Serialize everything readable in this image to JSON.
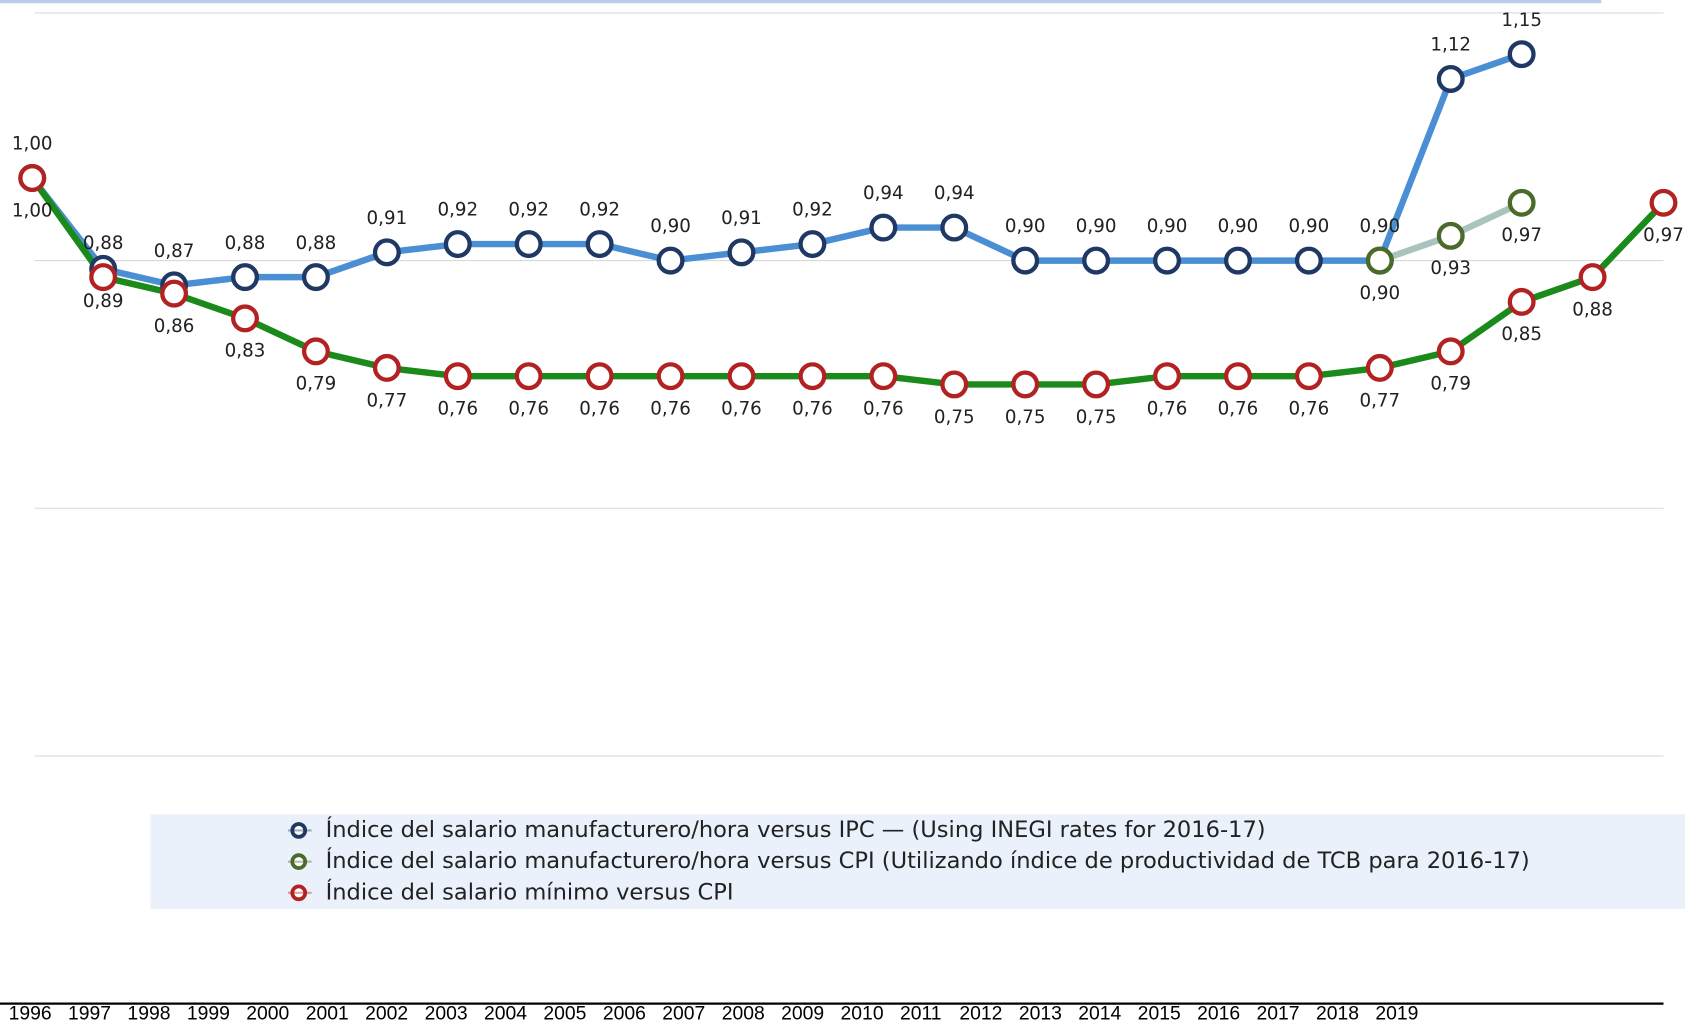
{
  "chart_data": {
    "type": "line",
    "categories": [
      "1996",
      "1997",
      "1998",
      "1999",
      "2000",
      "2001",
      "2002",
      "2003",
      "2004",
      "2005",
      "2006",
      "2007",
      "2008",
      "2009",
      "2010",
      "2011",
      "2012",
      "2013",
      "2014",
      "2015",
      "2016",
      "2017",
      "2018",
      "2019"
    ],
    "ylim": [
      0,
      1.2
    ],
    "yticks": [
      0.3,
      0.6,
      0.9,
      1.2
    ],
    "grid": true,
    "series": [
      {
        "name": "Índice del salario manufacturero/hora versus IPC — (Using INEGI rates for 2016-17)",
        "color": "#4a8fd4",
        "marker_color": "#1f3864",
        "values": [
          1.0,
          0.89,
          0.87,
          0.88,
          0.88,
          0.91,
          0.92,
          0.92,
          0.92,
          0.9,
          0.91,
          0.92,
          0.94,
          0.94,
          0.9,
          0.9,
          0.9,
          0.9,
          0.9,
          0.9,
          1.12,
          1.15,
          null,
          null
        ],
        "value_labels": [
          "1,00",
          "0,89",
          "0,87",
          "0,88",
          "0,88",
          "0,91",
          "0,92",
          "0,92",
          "0,92",
          "0,90",
          "0,91",
          "0,92",
          "0,94",
          "0,94",
          "0,90",
          "0,90",
          "0,90",
          "0,90",
          "0,90",
          "0,90",
          "1,12",
          "1,15",
          null,
          null
        ]
      },
      {
        "name": "Índice del salario manufacturero/hora versus CPI (Utilizando índice de productividad de TCB para 2016-17)",
        "color": "#a9c4bc",
        "marker_color": "#4a6b2a",
        "values": [
          null,
          null,
          null,
          null,
          null,
          null,
          null,
          null,
          null,
          null,
          null,
          null,
          null,
          null,
          null,
          null,
          null,
          null,
          null,
          0.9,
          0.93,
          0.97,
          null,
          null
        ],
        "value_labels": [
          null,
          null,
          null,
          null,
          null,
          null,
          null,
          null,
          null,
          null,
          null,
          null,
          null,
          null,
          null,
          null,
          null,
          null,
          null,
          "0,90",
          "0,93",
          "0,97",
          null,
          null
        ]
      },
      {
        "name": "Índice del salario mínimo versus CPI",
        "color": "#1a8a1a",
        "marker_color": "#b22222",
        "values": [
          1.0,
          0.88,
          0.86,
          0.83,
          0.79,
          0.77,
          0.76,
          0.76,
          0.76,
          0.76,
          0.76,
          0.76,
          0.76,
          0.75,
          0.75,
          0.75,
          0.76,
          0.76,
          0.76,
          0.77,
          0.79,
          0.85,
          0.88,
          0.97
        ],
        "value_labels": [
          "1,00",
          "0,88",
          "0,86",
          "0,83",
          "0,79",
          "0,77",
          "0,76",
          "0,76",
          "0,76",
          "0,76",
          "0,76",
          "0,76",
          "0,76",
          "0,75",
          "0,75",
          "0,75",
          "0,76",
          "0,76",
          "0,76",
          "0,77",
          "0,79",
          "0,85",
          "0,88",
          "0,97"
        ]
      }
    ]
  }
}
